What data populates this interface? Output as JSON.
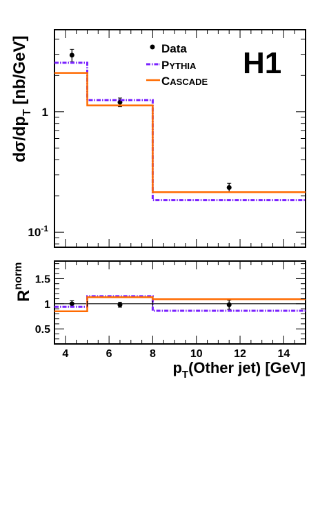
{
  "experiment_label": "H1",
  "colors": {
    "data": "#000000",
    "pythia": "#7a22ff",
    "cascade": "#ff6a00"
  },
  "chart_data": [
    {
      "type": "step",
      "panel": "upper",
      "ylabel": "dσ/dp_T [nb/GeV]",
      "ylabel_main": "dσ/dp",
      "ylabel_sub": "T",
      "ylabel_unit": " [nb/GeV]",
      "yscale": "log",
      "xlim": [
        3.5,
        15
      ],
      "ylim": [
        0.075,
        4.8
      ],
      "yticks": [
        {
          "value": 0.1,
          "label": "10",
          "exp": "-1"
        },
        {
          "value": 1,
          "label": "1",
          "exp": ""
        }
      ],
      "legend": {
        "position": "top-center",
        "entries": [
          "Data",
          "PYTHIA",
          "CASCADE"
        ]
      },
      "bins": [
        [
          3.5,
          5
        ],
        [
          5,
          8
        ],
        [
          8,
          15
        ]
      ],
      "series": [
        {
          "name": "Data",
          "style": "points",
          "x": [
            4.3,
            6.5,
            11.5
          ],
          "y": [
            2.95,
            1.2,
            0.235
          ],
          "yerr": [
            0.35,
            0.1,
            0.02
          ]
        },
        {
          "name": "PYTHIA",
          "style": "dash-dot-step",
          "values": [
            2.55,
            1.25,
            0.185
          ]
        },
        {
          "name": "CASCADE",
          "style": "solid-step",
          "values": [
            2.1,
            1.13,
            0.215
          ]
        }
      ]
    },
    {
      "type": "step",
      "panel": "lower",
      "ylabel": "R^norm",
      "ylabel_main": "R",
      "ylabel_sup": "norm",
      "xlabel": "p_T(Other jet) [GeV]",
      "xlabel_main": "p",
      "xlabel_sub": "T",
      "xlabel_rest": "(Other jet)  [GeV]",
      "xlim": [
        3.5,
        15
      ],
      "ylim": [
        0.2,
        1.85
      ],
      "yticks": [
        {
          "value": 0.5,
          "label": "0.5"
        },
        {
          "value": 1,
          "label": "1"
        },
        {
          "value": 1.5,
          "label": "1.5"
        }
      ],
      "xticks": [
        4,
        6,
        8,
        10,
        12,
        14
      ],
      "bins": [
        [
          3.5,
          5
        ],
        [
          5,
          8
        ],
        [
          8,
          15
        ]
      ],
      "series": [
        {
          "name": "Data",
          "style": "points",
          "x": [
            4.3,
            6.5,
            11.5
          ],
          "y": [
            1.0,
            0.98,
            0.98
          ],
          "yerr": [
            0.06,
            0.05,
            0.09
          ]
        },
        {
          "name": "Data reference",
          "style": "solid-step",
          "values": [
            1.0,
            1.0,
            1.0
          ]
        },
        {
          "name": "PYTHIA",
          "style": "dash-dot-step",
          "values": [
            0.94,
            1.15,
            0.86
          ]
        },
        {
          "name": "CASCADE",
          "style": "solid-step",
          "values": [
            0.85,
            1.13,
            1.09
          ]
        }
      ]
    }
  ]
}
